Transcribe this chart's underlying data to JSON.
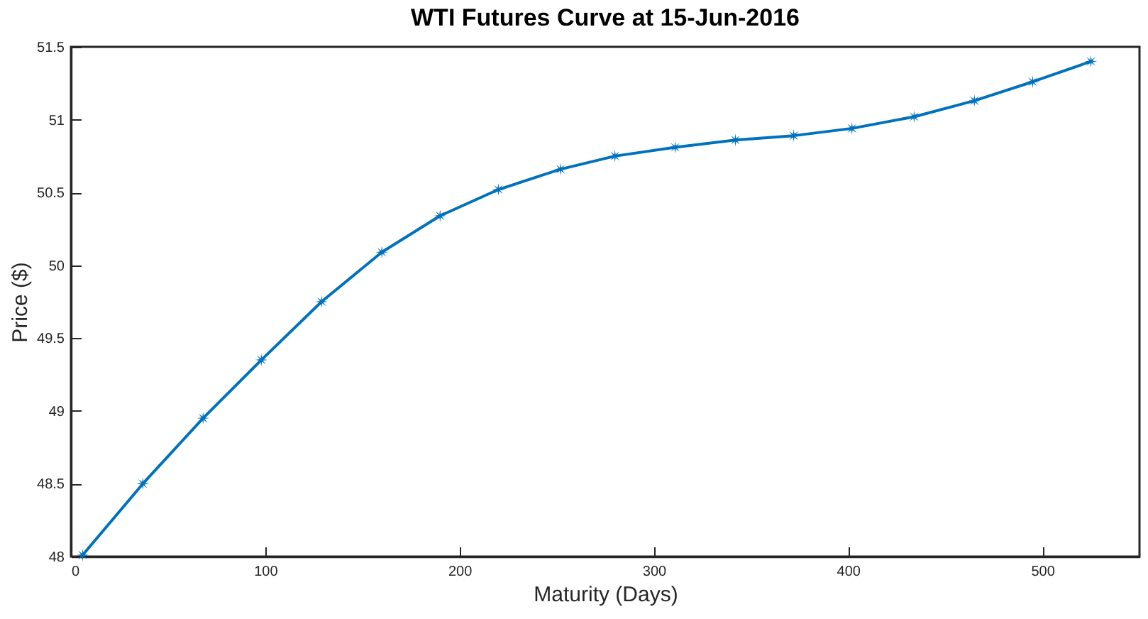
{
  "chart_data": {
    "type": "line",
    "title": "WTI Futures Curve at 15-Jun-2016",
    "xlabel": "Maturity (Days)",
    "ylabel": "Price ($)",
    "x": [
      6,
      37,
      68,
      98,
      129,
      160,
      190,
      220,
      252,
      280,
      311,
      342,
      372,
      402,
      434,
      465,
      495,
      525
    ],
    "series": [
      {
        "color": "#0072bd",
        "values": [
          48.01,
          48.5,
          48.95,
          49.35,
          49.75,
          50.09,
          50.34,
          50.52,
          50.66,
          50.75,
          50.81,
          50.86,
          50.89,
          50.94,
          51.02,
          51.13,
          51.26,
          51.4
        ]
      }
    ],
    "xlim": [
      0,
      550
    ],
    "xticks": [
      0,
      100,
      200,
      300,
      400,
      500
    ],
    "ylim": [
      48,
      51.5
    ],
    "yticks": [
      48,
      48.5,
      49,
      49.5,
      50,
      50.5,
      51,
      51.5
    ],
    "grid": false,
    "legend": false,
    "marker": "star",
    "line_style": "solid"
  }
}
